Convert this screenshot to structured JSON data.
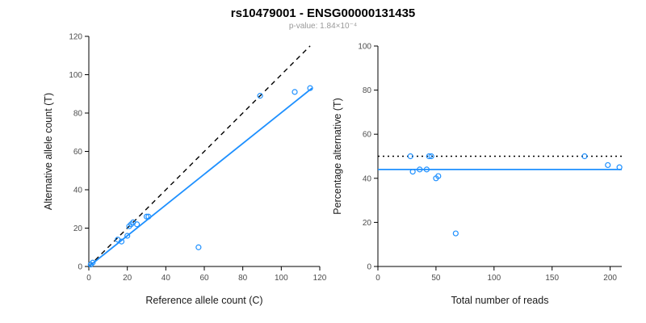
{
  "header": {
    "title": "rs10479001 - ENSG00000131435",
    "subtitle": "p-value: 1.84×10⁻⁴"
  },
  "colors": {
    "accent_blue": "#1E90FF",
    "line_black": "#000000",
    "tick_label": "#4d4d4d",
    "axis_label": "#1a1a1a"
  },
  "chart_data": [
    {
      "type": "scatter",
      "panel": "left",
      "title": "",
      "xlabel": "Reference allele count (C)",
      "ylabel": "Alternative allele count (T)",
      "xlim": [
        0,
        120
      ],
      "ylim": [
        0,
        120
      ],
      "xticks": [
        0,
        20,
        40,
        60,
        80,
        100,
        120
      ],
      "yticks": [
        0,
        20,
        40,
        60,
        80,
        100,
        120
      ],
      "grid": false,
      "points": [
        [
          1,
          1
        ],
        [
          2,
          2
        ],
        [
          15,
          14
        ],
        [
          17,
          13
        ],
        [
          20,
          16
        ],
        [
          21,
          21
        ],
        [
          22,
          22
        ],
        [
          23,
          23
        ],
        [
          25,
          22
        ],
        [
          30,
          26
        ],
        [
          31,
          26
        ],
        [
          57,
          10
        ],
        [
          89,
          89
        ],
        [
          107,
          91
        ],
        [
          115,
          93
        ]
      ],
      "lines": [
        {
          "name": "identity-line",
          "style": "dashed",
          "color": "#000000",
          "from": [
            0,
            0
          ],
          "to": [
            115,
            115
          ]
        },
        {
          "name": "regression-line",
          "style": "solid",
          "color": "#1E90FF",
          "from": [
            0,
            0
          ],
          "to": [
            116,
            93
          ]
        }
      ]
    },
    {
      "type": "scatter",
      "panel": "right",
      "title": "",
      "xlabel": "Total number of reads",
      "ylabel": "Percentage alternative (T)",
      "xlim": [
        0,
        210
      ],
      "ylim": [
        0,
        100
      ],
      "xticks": [
        0,
        50,
        100,
        150,
        200
      ],
      "yticks": [
        0,
        20,
        40,
        60,
        80,
        100
      ],
      "grid": false,
      "points": [
        [
          28,
          50
        ],
        [
          30,
          43
        ],
        [
          36,
          44
        ],
        [
          42,
          44
        ],
        [
          44,
          50
        ],
        [
          46,
          50
        ],
        [
          50,
          40
        ],
        [
          52,
          41
        ],
        [
          67,
          15
        ],
        [
          178,
          50
        ],
        [
          198,
          46
        ],
        [
          208,
          45
        ]
      ],
      "lines": [
        {
          "name": "fifty-percent-line",
          "style": "dotted",
          "color": "#000000",
          "from": [
            0,
            50
          ],
          "to": [
            210,
            50
          ]
        },
        {
          "name": "mean-percentage-line",
          "style": "solid",
          "color": "#1E90FF",
          "from": [
            0,
            44
          ],
          "to": [
            210,
            44
          ]
        }
      ]
    }
  ]
}
